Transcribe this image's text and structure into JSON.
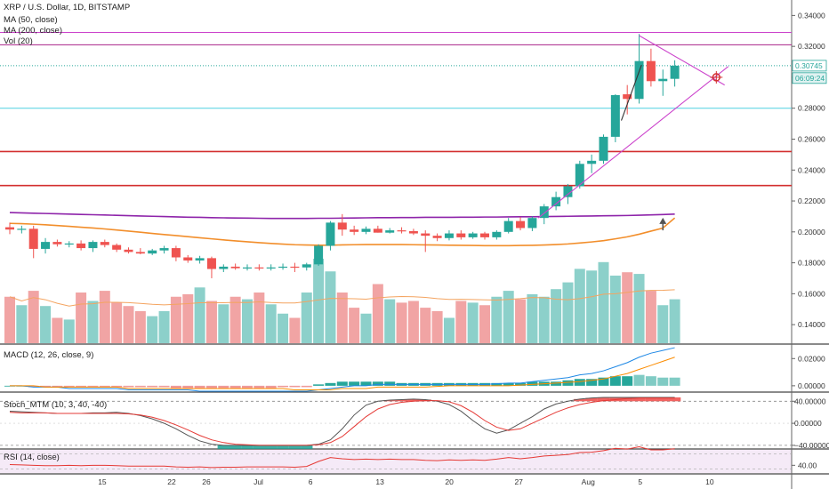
{
  "chart_data": {
    "type": "candlestick",
    "symbol": "XRP / U.S. Dollar, 1D, BITSTAMP",
    "indicators": {
      "ma50": "MA (50, close)",
      "ma200": "MA (200, close)",
      "vol": "Vol (20)",
      "macd": "MACD (12, 26, close, 9)",
      "stoch": "Stoch_MTM (10, 3, 40, -40)",
      "rsi": "RSI (14, close)"
    },
    "price_axis": {
      "ticks": [
        0.14,
        0.16,
        0.18,
        0.2,
        0.22,
        0.24,
        0.26,
        0.28,
        0.3,
        0.32,
        0.34
      ],
      "tick_labels": [
        "0.14000",
        "0.16000",
        "0.18000",
        "0.20000",
        "0.22000",
        "0.24000",
        "0.26000",
        "0.28000",
        "0.30000",
        "0.32000",
        "0.34000"
      ],
      "range": [
        0.128,
        0.35
      ]
    },
    "macd_axis": {
      "ticks": [
        0.02,
        0.0
      ],
      "tick_labels": [
        "0.02000",
        "0.00000"
      ],
      "range": [
        -0.004,
        0.03
      ]
    },
    "stoch_axis": {
      "ticks": [
        40,
        0,
        -40
      ],
      "tick_labels": [
        "40.00000",
        "0.00000",
        "−40.00000"
      ],
      "range": [
        -45,
        55
      ]
    },
    "rsi_axis": {
      "ticks": [
        40
      ],
      "tick_labels": [
        "40.00"
      ],
      "range": [
        20,
        80
      ]
    },
    "x_axis_labels": [
      {
        "label": "15",
        "index": 3
      },
      {
        "label": "22",
        "index": 7
      },
      {
        "label": "26",
        "index": 9
      },
      {
        "label": "Jul",
        "index": 12
      },
      {
        "label": "6",
        "index": 15
      },
      {
        "label": "13",
        "index": 19
      },
      {
        "label": "20",
        "index": 23
      },
      {
        "label": "27",
        "index": 27
      },
      {
        "label": "Aug",
        "index": 31
      },
      {
        "label": "5",
        "index": 34
      },
      {
        "label": "10",
        "index": 38
      }
    ],
    "candles": [
      {
        "o": 0.203,
        "h": 0.206,
        "l": 0.1985,
        "c": 0.2015
      },
      {
        "o": 0.2015,
        "h": 0.204,
        "l": 0.199,
        "c": 0.202
      },
      {
        "o": 0.202,
        "h": 0.204,
        "l": 0.183,
        "c": 0.189
      },
      {
        "o": 0.189,
        "h": 0.196,
        "l": 0.186,
        "c": 0.1935
      },
      {
        "o": 0.1935,
        "h": 0.195,
        "l": 0.1905,
        "c": 0.192
      },
      {
        "o": 0.192,
        "h": 0.194,
        "l": 0.19,
        "c": 0.1925
      },
      {
        "o": 0.1925,
        "h": 0.1945,
        "l": 0.188,
        "c": 0.1895
      },
      {
        "o": 0.1895,
        "h": 0.1945,
        "l": 0.187,
        "c": 0.1935
      },
      {
        "o": 0.1935,
        "h": 0.195,
        "l": 0.19,
        "c": 0.1915
      },
      {
        "o": 0.1915,
        "h": 0.1925,
        "l": 0.187,
        "c": 0.1885
      },
      {
        "o": 0.1885,
        "h": 0.19,
        "l": 0.186,
        "c": 0.187
      },
      {
        "o": 0.187,
        "h": 0.1895,
        "l": 0.1855,
        "c": 0.186
      },
      {
        "o": 0.186,
        "h": 0.189,
        "l": 0.185,
        "c": 0.188
      },
      {
        "o": 0.188,
        "h": 0.191,
        "l": 0.186,
        "c": 0.1895
      },
      {
        "o": 0.1895,
        "h": 0.191,
        "l": 0.181,
        "c": 0.1835
      },
      {
        "o": 0.1835,
        "h": 0.185,
        "l": 0.18,
        "c": 0.1815
      },
      {
        "o": 0.1815,
        "h": 0.1845,
        "l": 0.1795,
        "c": 0.183
      },
      {
        "o": 0.183,
        "h": 0.184,
        "l": 0.17,
        "c": 0.176
      },
      {
        "o": 0.176,
        "h": 0.179,
        "l": 0.174,
        "c": 0.1775
      },
      {
        "o": 0.1775,
        "h": 0.1795,
        "l": 0.1755,
        "c": 0.1765
      },
      {
        "o": 0.1765,
        "h": 0.179,
        "l": 0.175,
        "c": 0.177
      },
      {
        "o": 0.177,
        "h": 0.179,
        "l": 0.175,
        "c": 0.1765
      },
      {
        "o": 0.1765,
        "h": 0.179,
        "l": 0.175,
        "c": 0.177
      },
      {
        "o": 0.177,
        "h": 0.1795,
        "l": 0.1755,
        "c": 0.1775
      },
      {
        "o": 0.1775,
        "h": 0.18,
        "l": 0.174,
        "c": 0.177
      },
      {
        "o": 0.177,
        "h": 0.18,
        "l": 0.175,
        "c": 0.179
      },
      {
        "o": 0.179,
        "h": 0.192,
        "l": 0.178,
        "c": 0.191
      },
      {
        "o": 0.191,
        "h": 0.207,
        "l": 0.188,
        "c": 0.206
      },
      {
        "o": 0.206,
        "h": 0.2115,
        "l": 0.1975,
        "c": 0.2015
      },
      {
        "o": 0.2015,
        "h": 0.204,
        "l": 0.198,
        "c": 0.2
      },
      {
        "o": 0.2,
        "h": 0.2035,
        "l": 0.1985,
        "c": 0.202
      },
      {
        "o": 0.202,
        "h": 0.204,
        "l": 0.1995,
        "c": 0.1995
      },
      {
        "o": 0.1995,
        "h": 0.2025,
        "l": 0.199,
        "c": 0.201
      },
      {
        "o": 0.201,
        "h": 0.203,
        "l": 0.199,
        "c": 0.2005
      },
      {
        "o": 0.2005,
        "h": 0.202,
        "l": 0.198,
        "c": 0.199
      },
      {
        "o": 0.199,
        "h": 0.201,
        "l": 0.187,
        "c": 0.1975
      },
      {
        "o": 0.1975,
        "h": 0.199,
        "l": 0.194,
        "c": 0.196
      },
      {
        "o": 0.196,
        "h": 0.201,
        "l": 0.1945,
        "c": 0.199
      },
      {
        "o": 0.199,
        "h": 0.201,
        "l": 0.195,
        "c": 0.1965
      },
      {
        "o": 0.1965,
        "h": 0.2,
        "l": 0.1955,
        "c": 0.199
      },
      {
        "o": 0.199,
        "h": 0.2,
        "l": 0.195,
        "c": 0.1965
      },
      {
        "o": 0.1965,
        "h": 0.201,
        "l": 0.195,
        "c": 0.2
      },
      {
        "o": 0.2,
        "h": 0.209,
        "l": 0.199,
        "c": 0.207
      },
      {
        "o": 0.207,
        "h": 0.2095,
        "l": 0.201,
        "c": 0.2025
      },
      {
        "o": 0.2025,
        "h": 0.21,
        "l": 0.2005,
        "c": 0.209
      },
      {
        "o": 0.209,
        "h": 0.218,
        "l": 0.205,
        "c": 0.2165
      },
      {
        "o": 0.2165,
        "h": 0.226,
        "l": 0.214,
        "c": 0.2225
      },
      {
        "o": 0.2225,
        "h": 0.231,
        "l": 0.218,
        "c": 0.2295
      },
      {
        "o": 0.2295,
        "h": 0.246,
        "l": 0.228,
        "c": 0.244
      },
      {
        "o": 0.244,
        "h": 0.25,
        "l": 0.238,
        "c": 0.246
      },
      {
        "o": 0.246,
        "h": 0.263,
        "l": 0.244,
        "c": 0.2615
      },
      {
        "o": 0.2615,
        "h": 0.289,
        "l": 0.258,
        "c": 0.2885
      },
      {
        "o": 0.289,
        "h": 0.295,
        "l": 0.276,
        "c": 0.286
      },
      {
        "o": 0.286,
        "h": 0.328,
        "l": 0.283,
        "c": 0.3105
      },
      {
        "o": 0.3105,
        "h": 0.3185,
        "l": 0.294,
        "c": 0.2975
      },
      {
        "o": 0.2975,
        "h": 0.305,
        "l": 0.288,
        "c": 0.299
      },
      {
        "o": 0.299,
        "h": 0.311,
        "l": 0.294,
        "c": 0.3075
      }
    ],
    "volumes": [
      0.55,
      0.45,
      0.62,
      0.44,
      0.3,
      0.28,
      0.6,
      0.5,
      0.62,
      0.48,
      0.44,
      0.38,
      0.32,
      0.38,
      0.55,
      0.58,
      0.66,
      0.5,
      0.46,
      0.55,
      0.52,
      0.6,
      0.46,
      0.35,
      0.3,
      0.6,
      1.0,
      0.85,
      0.6,
      0.42,
      0.35,
      0.7,
      0.52,
      0.48,
      0.5,
      0.42,
      0.38,
      0.3,
      0.5,
      0.48,
      0.45,
      0.55,
      0.62,
      0.52,
      0.58,
      0.55,
      0.64,
      0.72,
      0.88,
      0.86,
      0.96,
      0.8,
      0.84,
      0.82,
      0.62,
      0.45,
      0.52
    ],
    "ma50": [
      0.2055,
      0.2053,
      0.205,
      0.2046,
      0.2041,
      0.2036,
      0.203,
      0.2025,
      0.2019,
      0.2012,
      0.2005,
      0.1998,
      0.199,
      0.1983,
      0.1976,
      0.1969,
      0.1962,
      0.1955,
      0.1948,
      0.1942,
      0.1936,
      0.193,
      0.1925,
      0.1921,
      0.1917,
      0.1915,
      0.1914,
      0.1914,
      0.1916,
      0.1917,
      0.1918,
      0.1918,
      0.1918,
      0.1918,
      0.1917,
      0.1916,
      0.1915,
      0.1914,
      0.1913,
      0.1912,
      0.1911,
      0.1911,
      0.1911,
      0.1912,
      0.1913,
      0.1915,
      0.1918,
      0.1922,
      0.1928,
      0.1935,
      0.1943,
      0.1955,
      0.1968,
      0.1985,
      0.2005,
      0.2025,
      0.209
    ],
    "ma200": [
      0.2125,
      0.2123,
      0.2121,
      0.2119,
      0.2117,
      0.2115,
      0.2113,
      0.2111,
      0.2109,
      0.2107,
      0.2105,
      0.2103,
      0.2101,
      0.2099,
      0.2097,
      0.2095,
      0.2094,
      0.2092,
      0.2091,
      0.209,
      0.2089,
      0.2088,
      0.2087,
      0.2087,
      0.2087,
      0.2087,
      0.2088,
      0.2088,
      0.2089,
      0.209,
      0.2091,
      0.2092,
      0.2092,
      0.2093,
      0.2093,
      0.2094,
      0.2094,
      0.2094,
      0.2095,
      0.2095,
      0.2096,
      0.2096,
      0.2097,
      0.2098,
      0.2098,
      0.2099,
      0.21,
      0.2101,
      0.2102,
      0.2103,
      0.2104,
      0.2105,
      0.2106,
      0.2108,
      0.211,
      0.2112,
      0.2115
    ],
    "horizontal_levels": [
      {
        "price": 0.329,
        "color": "#cc44cc"
      },
      {
        "price": 0.321,
        "color": "#aa2288"
      },
      {
        "price": 0.3075,
        "color": "#26a69a",
        "dotted": true
      },
      {
        "price": 0.28,
        "color": "#4dd0e1"
      },
      {
        "price": 0.252,
        "color": "#d32f2f"
      },
      {
        "price": 0.23,
        "color": "#d32f2f"
      }
    ],
    "trendlines": [
      {
        "from": {
          "i": 53,
          "p": 0.327
        },
        "to": {
          "i": 60.2,
          "p": 0.295
        },
        "color": "#cc44cc"
      },
      {
        "from": {
          "i": 44.5,
          "p": 0.209
        },
        "to": {
          "i": 60.5,
          "p": 0.307
        },
        "color": "#cc44cc"
      },
      {
        "from": {
          "i": 51.5,
          "p": 0.272
        },
        "to": {
          "i": 53.2,
          "p": 0.308
        },
        "color": "#333333"
      }
    ],
    "arrow_note": {
      "i": 55,
      "p_from": 0.201,
      "p_to": 0.208,
      "color": "#555555"
    },
    "price_badges": [
      {
        "label": "0.30745",
        "price": 0.3075,
        "bg": "#ffffff",
        "fg": "#26a69a",
        "border": "#26a69a"
      },
      {
        "label": "06:09:24",
        "price": 0.2995,
        "bg": "#e0f2f1",
        "fg": "#26a69a",
        "border": "#26a69a"
      }
    ],
    "macd_hist": [
      0.0,
      0.0,
      -0.001,
      -0.001,
      -0.001,
      -0.001,
      -0.001,
      -0.001,
      -0.001,
      -0.001,
      -0.001,
      -0.001,
      -0.001,
      -0.001,
      -0.002,
      -0.002,
      -0.002,
      -0.002,
      -0.002,
      -0.002,
      -0.002,
      -0.002,
      -0.002,
      -0.001,
      -0.001,
      -0.001,
      0.001,
      0.002,
      0.003,
      0.003,
      0.003,
      0.003,
      0.003,
      0.002,
      0.002,
      0.002,
      0.002,
      0.002,
      0.002,
      0.002,
      0.002,
      0.002,
      0.002,
      0.002,
      0.003,
      0.003,
      0.003,
      0.004,
      0.005,
      0.005,
      0.006,
      0.007,
      0.007,
      0.008,
      0.007,
      0.006,
      0.006
    ],
    "macd_line": [
      0.0,
      0.0,
      -0.001,
      -0.001,
      -0.001,
      -0.002,
      -0.002,
      -0.002,
      -0.002,
      -0.002,
      -0.003,
      -0.003,
      -0.003,
      -0.003,
      -0.003,
      -0.003,
      -0.004,
      -0.004,
      -0.004,
      -0.004,
      -0.004,
      -0.004,
      -0.004,
      -0.004,
      -0.004,
      -0.004,
      -0.003,
      -0.002,
      -0.001,
      0.0,
      0.0,
      0.001,
      0.001,
      0.001,
      0.001,
      0.001,
      0.001,
      0.001,
      0.001,
      0.001,
      0.001,
      0.0015,
      0.002,
      0.002,
      0.003,
      0.004,
      0.005,
      0.006,
      0.008,
      0.009,
      0.011,
      0.014,
      0.017,
      0.021,
      0.024,
      0.026,
      0.028
    ],
    "macd_signal": [
      0.0,
      0.0,
      0.0,
      -0.001,
      -0.001,
      -0.001,
      -0.001,
      -0.001,
      -0.001,
      -0.001,
      -0.002,
      -0.002,
      -0.002,
      -0.002,
      -0.002,
      -0.002,
      -0.002,
      -0.002,
      -0.002,
      -0.002,
      -0.002,
      -0.002,
      -0.002,
      -0.002,
      -0.003,
      -0.003,
      -0.003,
      -0.003,
      -0.002,
      -0.002,
      -0.002,
      -0.001,
      -0.001,
      -0.001,
      -0.001,
      -0.001,
      -0.0005,
      0.0,
      0.0,
      0.0,
      0.0,
      0.0,
      0.0,
      0.0005,
      0.001,
      0.0015,
      0.002,
      0.0025,
      0.003,
      0.004,
      0.005,
      0.007,
      0.009,
      0.012,
      0.015,
      0.018,
      0.021
    ],
    "stoch_k": [
      22,
      21,
      20,
      19,
      18,
      18,
      18,
      19,
      19,
      20,
      18,
      14,
      8,
      0,
      -10,
      -22,
      -32,
      -38,
      -40,
      -40,
      -40,
      -40,
      -40,
      -40,
      -40,
      -40,
      -38,
      -30,
      -10,
      15,
      33,
      40,
      42,
      43,
      44,
      43,
      40,
      34,
      22,
      5,
      -10,
      -18,
      -12,
      0,
      12,
      26,
      35,
      40,
      44,
      46,
      47,
      47,
      47,
      47,
      47,
      47,
      47
    ],
    "stoch_d": [
      20,
      19,
      19,
      19,
      18,
      18,
      18,
      18,
      18,
      18,
      17,
      15,
      11,
      5,
      -3,
      -12,
      -22,
      -30,
      -35,
      -38,
      -39,
      -40,
      -40,
      -40,
      -40,
      -40,
      -39,
      -35,
      -24,
      -6,
      12,
      26,
      34,
      38,
      40,
      41,
      41,
      39,
      32,
      20,
      5,
      -7,
      -13,
      -10,
      0,
      10,
      20,
      28,
      34,
      38,
      41,
      43,
      45,
      46,
      46,
      46,
      46
    ],
    "rsi": [
      42,
      41,
      40,
      39,
      39,
      40,
      39,
      40,
      40,
      39,
      38,
      38,
      38,
      38,
      36,
      35,
      36,
      34,
      35,
      35,
      36,
      36,
      36,
      36,
      35,
      37,
      50,
      60,
      57,
      55,
      56,
      55,
      56,
      55,
      55,
      53,
      52,
      54,
      53,
      54,
      53,
      56,
      60,
      57,
      60,
      64,
      66,
      68,
      73,
      74,
      78,
      84,
      82,
      88,
      80,
      80,
      83
    ]
  }
}
